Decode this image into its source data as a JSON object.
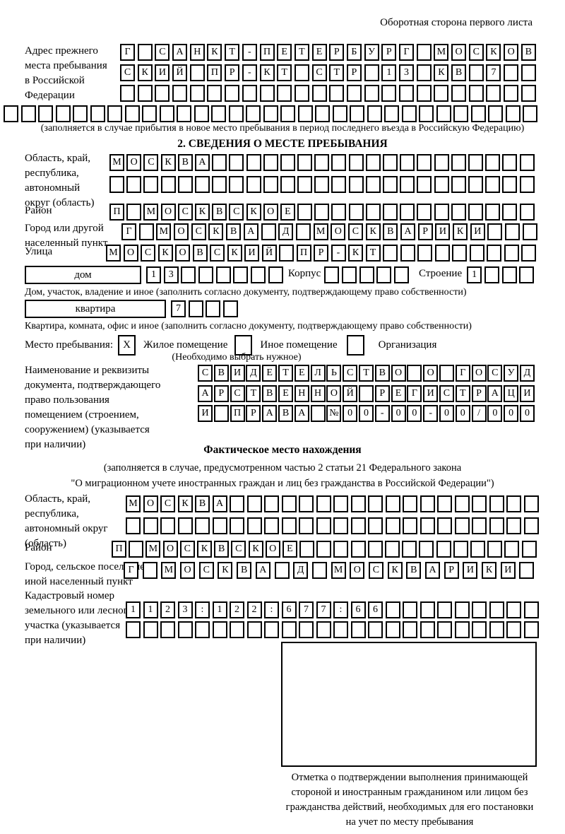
{
  "page": {
    "top_note": "Оборотная сторона первого листа"
  },
  "prev_address": {
    "label": "Адрес прежнего\nместа пребывания\nв Российской\nФедерации",
    "row1": [
      "Г",
      "",
      "С",
      "А",
      "Н",
      "К",
      "Т",
      "-",
      "П",
      "Е",
      "Т",
      "Е",
      "Р",
      "Б",
      "У",
      "Р",
      "Г",
      "",
      "М",
      "О",
      "С",
      "К",
      "О",
      "В"
    ],
    "row2": [
      "С",
      "К",
      "И",
      "Й",
      "",
      "П",
      "Р",
      "-",
      "К",
      "Т",
      "",
      "С",
      "Т",
      "Р",
      "",
      "1",
      "3",
      "",
      "К",
      "В",
      "",
      "7",
      "",
      ""
    ],
    "row3": [
      "",
      "",
      "",
      "",
      "",
      "",
      "",
      "",
      "",
      "",
      "",
      "",
      "",
      "",
      "",
      "",
      "",
      "",
      "",
      "",
      "",
      "",
      "",
      ""
    ],
    "row4": [
      "",
      "",
      "",
      "",
      "",
      "",
      "",
      "",
      "",
      "",
      "",
      "",
      "",
      "",
      "",
      "",
      "",
      "",
      "",
      "",
      "",
      "",
      "",
      "",
      "",
      "",
      "",
      "",
      "",
      "",
      ""
    ],
    "note": "(заполняется в случае прибытия в новое место пребывания в период последнего въезда в Российскую Федерацию)"
  },
  "section2": {
    "title": "2. СВЕДЕНИЯ О МЕСТЕ ПРЕБЫВАНИЯ",
    "oblast": {
      "label": "Область, край,\nреспублика,\nавтономный\nокруг (область)",
      "row1": [
        "М",
        "О",
        "С",
        "К",
        "В",
        "А",
        "",
        "",
        "",
        "",
        "",
        "",
        "",
        "",
        "",
        "",
        "",
        "",
        "",
        "",
        "",
        "",
        "",
        "",
        ""
      ],
      "row2": [
        "",
        "",
        "",
        "",
        "",
        "",
        "",
        "",
        "",
        "",
        "",
        "",
        "",
        "",
        "",
        "",
        "",
        "",
        "",
        "",
        "",
        "",
        "",
        "",
        ""
      ]
    },
    "raion": {
      "label": "Район",
      "row": [
        "П",
        "",
        "М",
        "О",
        "С",
        "К",
        "В",
        "С",
        "К",
        "О",
        "Е",
        "",
        "",
        "",
        "",
        "",
        "",
        "",
        "",
        "",
        "",
        "",
        "",
        "",
        ""
      ]
    },
    "city": {
      "label": "Город или другой\nнаселенный пункт",
      "row": [
        "Г",
        "",
        "М",
        "О",
        "С",
        "К",
        "В",
        "А",
        "",
        "Д",
        "",
        "М",
        "О",
        "С",
        "К",
        "В",
        "А",
        "Р",
        "И",
        "К",
        "И",
        "",
        "",
        ""
      ]
    },
    "street": {
      "label": "Улица",
      "row": [
        "М",
        "О",
        "С",
        "К",
        "О",
        "В",
        "С",
        "К",
        "И",
        "Й",
        "",
        "П",
        "Р",
        "-",
        "К",
        "Т",
        "",
        "",
        "",
        "",
        "",
        "",
        "",
        "",
        ""
      ]
    },
    "house": {
      "box_label": "дом",
      "cells": [
        "1",
        "3",
        "",
        "",
        "",
        "",
        "",
        ""
      ],
      "korpus_label": "Корпус",
      "korpus_cells": [
        "",
        "",
        "",
        "",
        ""
      ],
      "stroenie_label": "Строение",
      "stroenie_cells": [
        "1",
        "",
        "",
        ""
      ],
      "note": "Дом, участок, владение и иное (заполнить согласно документу, подтверждающему право собственности)"
    },
    "apartment": {
      "box_label": "квартира",
      "cells": [
        "7",
        "",
        "",
        ""
      ],
      "note": "Квартира, комната, офис и иное (заполнить согласно документу, подтверждающему право собственности)"
    },
    "stay_type": {
      "label": "Место пребывания:",
      "options": [
        {
          "label": "Жилое помещение",
          "mark": "X"
        },
        {
          "label": "Иное помещение",
          "mark": ""
        },
        {
          "label": "Организация",
          "mark": ""
        }
      ],
      "note": "(Необходимо выбрать нужное)"
    },
    "document": {
      "label": "Наименование и реквизиты\nдокумента, подтверждающего\nправо пользования\nпомещением (строением,\nсооружением) (указывается\nпри наличии)",
      "row1": [
        "С",
        "В",
        "И",
        "Д",
        "Е",
        "Т",
        "Е",
        "Л",
        "Ь",
        "С",
        "Т",
        "В",
        "О",
        "",
        "О",
        "",
        "Г",
        "О",
        "С",
        "У",
        "Д"
      ],
      "row2": [
        "А",
        "Р",
        "С",
        "Т",
        "В",
        "Е",
        "Н",
        "Н",
        "О",
        "Й",
        "",
        "Р",
        "Е",
        "Г",
        "И",
        "С",
        "Т",
        "Р",
        "А",
        "Ц",
        "И"
      ],
      "row3": [
        "И",
        "",
        "П",
        "Р",
        "А",
        "В",
        "А",
        "",
        "№",
        "0",
        "0",
        "-",
        "0",
        "0",
        "-",
        "0",
        "0",
        "/",
        "0",
        "0",
        "0"
      ]
    }
  },
  "factual": {
    "title": "Фактическое место нахождения",
    "note1": "(заполняется в случае, предусмотренном частью 2 статьи 21 Федерального закона",
    "note2": "\"О миграционном учете иностранных граждан и лиц без гражданства в Российской Федерации\")",
    "oblast": {
      "label": "Область, край,\nреспублика,\nавтономный округ\n(область)",
      "row1": [
        "М",
        "О",
        "С",
        "К",
        "В",
        "А",
        "",
        "",
        "",
        "",
        "",
        "",
        "",
        "",
        "",
        "",
        "",
        "",
        "",
        "",
        "",
        "",
        "",
        ""
      ],
      "row2": [
        "",
        "",
        "",
        "",
        "",
        "",
        "",
        "",
        "",
        "",
        "",
        "",
        "",
        "",
        "",
        "",
        "",
        "",
        "",
        "",
        "",
        "",
        "",
        ""
      ]
    },
    "raion": {
      "label": "Район",
      "row": [
        "П",
        "",
        "М",
        "О",
        "С",
        "К",
        "В",
        "С",
        "К",
        "О",
        "Е",
        "",
        "",
        "",
        "",
        "",
        "",
        "",
        "",
        "",
        "",
        "",
        "",
        "",
        ""
      ]
    },
    "city": {
      "label": "Город, сельское поселение,\nиной населенный пункт",
      "row": [
        "Г",
        "",
        "М",
        "О",
        "С",
        "К",
        "В",
        "А",
        "",
        "Д",
        "",
        "М",
        "О",
        "С",
        "К",
        "В",
        "А",
        "Р",
        "И",
        "К",
        "И",
        ""
      ]
    },
    "cadastre": {
      "label": "Кадастровый номер\nземельного или лесного\nучастка (указывается\nпри наличии)",
      "row1": [
        "1",
        "1",
        "2",
        "3",
        ":",
        "1",
        "2",
        "2",
        ":",
        "6",
        "7",
        "7",
        ":",
        "6",
        "6",
        "",
        "",
        "",
        "",
        "",
        "",
        "",
        "",
        ""
      ],
      "row2": [
        "",
        "",
        "",
        "",
        "",
        "",
        "",
        "",
        "",
        "",
        "",
        "",
        "",
        "",
        "",
        "",
        "",
        "",
        "",
        "",
        "",
        "",
        "",
        ""
      ]
    },
    "stamp_note": "Отметка о подтверждении выполнения принимающей\nстороной и иностранным гражданином или лицом без\nгражданства действий, необходимых для его постановки\nна учет по месту пребывания"
  }
}
